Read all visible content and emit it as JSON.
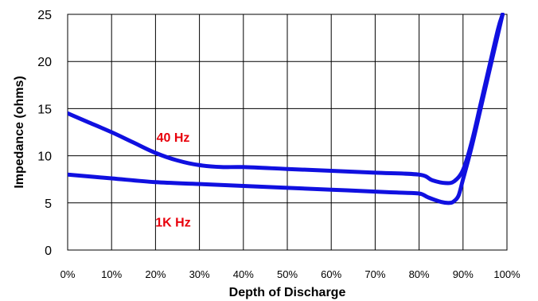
{
  "chart_data": {
    "type": "line",
    "title": "",
    "xlabel": "Depth of Discharge",
    "ylabel": "Impedance (ohms)",
    "xlim": [
      0,
      100
    ],
    "ylim": [
      0,
      25
    ],
    "x_ticks": [
      "0%",
      "10%",
      "20%",
      "30%",
      "40%",
      "50%",
      "60%",
      "70%",
      "80%",
      "90%",
      "100%"
    ],
    "y_ticks": [
      "0",
      "5",
      "10",
      "15",
      "20",
      "25"
    ],
    "grid": true,
    "legend": "none",
    "line_color": "#1010e0",
    "annotation_color": "#e8000b",
    "annotations": [
      {
        "text": "40 Hz",
        "x": 24,
        "y": 12
      },
      {
        "text": "1K Hz",
        "x": 24,
        "y": 3
      }
    ],
    "series": [
      {
        "x": [
          0,
          5,
          10,
          15,
          20,
          25,
          30,
          35,
          40,
          50,
          60,
          70,
          80,
          83,
          86,
          88,
          90,
          92,
          94,
          96,
          98,
          99
        ],
        "y": [
          14.5,
          13.5,
          12.5,
          11.4,
          10.3,
          9.5,
          9.0,
          8.8,
          8.8,
          8.6,
          8.4,
          8.2,
          8.0,
          7.4,
          7.1,
          7.3,
          8.5,
          11.5,
          15.5,
          19.5,
          23.5,
          25.0
        ]
      },
      {
        "x": [
          0,
          10,
          20,
          30,
          40,
          50,
          60,
          70,
          75,
          80,
          82,
          85,
          87,
          88,
          89,
          90,
          92,
          94,
          96,
          98,
          99
        ],
        "y": [
          8.0,
          7.6,
          7.2,
          7.0,
          6.8,
          6.6,
          6.4,
          6.2,
          6.1,
          6.0,
          5.6,
          5.1,
          5.0,
          5.2,
          5.8,
          7.5,
          11.0,
          15.0,
          19.0,
          23.0,
          25.0
        ]
      }
    ]
  }
}
